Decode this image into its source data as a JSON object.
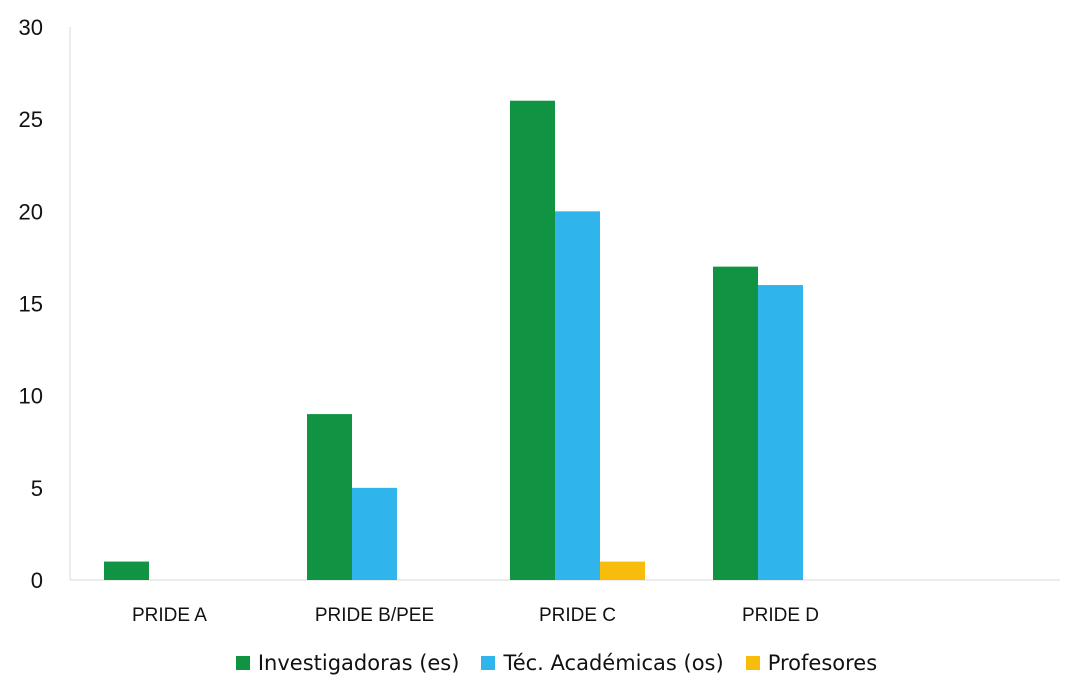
{
  "chart_data": {
    "type": "bar",
    "title": "",
    "xlabel": "",
    "ylabel": "",
    "categories": [
      "PRIDE A",
      "PRIDE B/PEE",
      "PRIDE C",
      "PRIDE D"
    ],
    "series": [
      {
        "name": "Investigadoras (es)",
        "values": [
          1,
          9,
          26,
          17
        ],
        "color": "#109444"
      },
      {
        "name": "Téc. Académicas (os)",
        "values": [
          0,
          5,
          20,
          16
        ],
        "color": "#30B4EC"
      },
      {
        "name": "Profesores",
        "values": [
          0,
          0,
          1,
          0
        ],
        "color": "#F8BC0C"
      }
    ],
    "ylim": [
      0,
      30
    ],
    "yticks": [
      "0",
      "5",
      "10",
      "15",
      "20",
      "25",
      "30"
    ],
    "grid": false,
    "legend_position": "bottom"
  }
}
